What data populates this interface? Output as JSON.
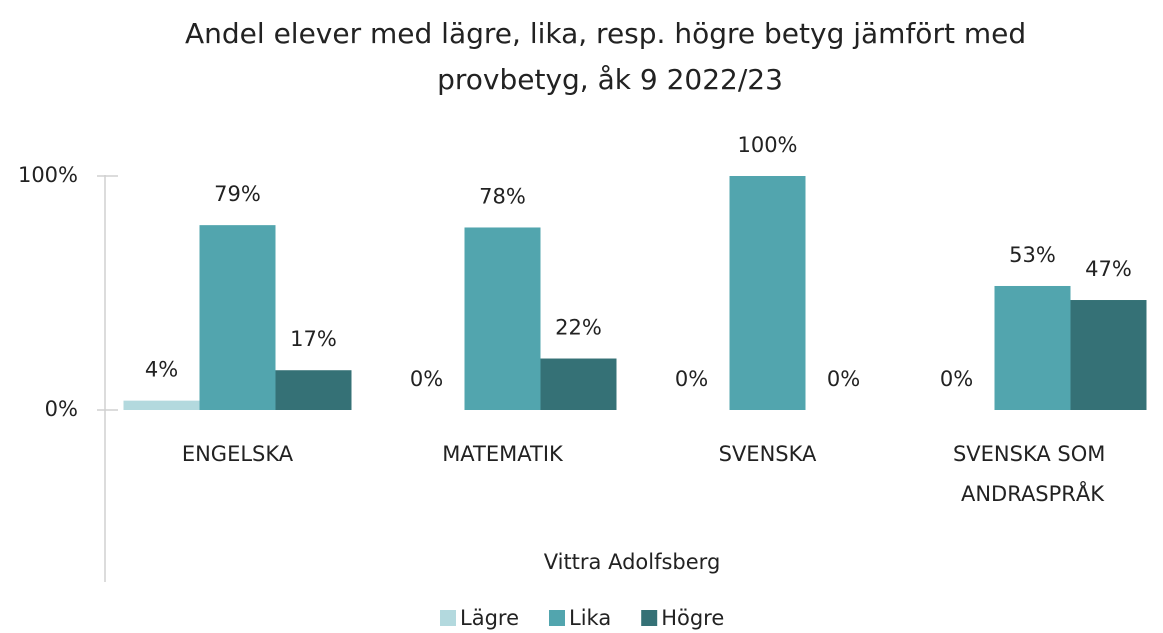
{
  "chart_data": {
    "type": "bar",
    "title": "Andel elever med lägre, lika, resp. högre betyg jämfört med provbetyg, åk 9 2022/23",
    "x_label": "Vittra Adolfsberg",
    "categories": [
      "ENGELSKA",
      "MATEMATIK",
      "SVENSKA",
      "SVENSKA SOM ANDRASPRÅK"
    ],
    "series": [
      {
        "name": "Lägre",
        "color": "#b3d9de",
        "values": [
          4,
          0,
          0,
          0
        ],
        "value_labels": [
          "4%",
          "0%",
          "0%",
          "0%"
        ]
      },
      {
        "name": "Lika",
        "color": "#52a5ae",
        "values": [
          79,
          78,
          100,
          53
        ],
        "value_labels": [
          "79%",
          "78%",
          "100%",
          "53%"
        ]
      },
      {
        "name": "Högre",
        "color": "#357176",
        "values": [
          17,
          22,
          0,
          47
        ],
        "value_labels": [
          "17%",
          "22%",
          "0%",
          "47%"
        ]
      }
    ],
    "ylim": [
      0,
      100
    ],
    "yticks": [
      {
        "value": 0,
        "label": "0%"
      },
      {
        "value": 100,
        "label": "100%"
      }
    ],
    "grid": false,
    "legend": "bottom"
  }
}
